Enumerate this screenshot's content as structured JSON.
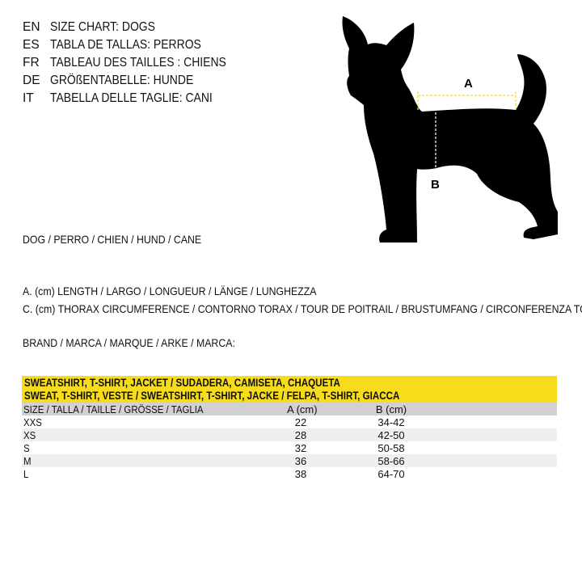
{
  "languages": [
    {
      "code": "EN",
      "text": "SIZE CHART: DOGS"
    },
    {
      "code": "ES",
      "text": "TABLA DE TALLAS: PERROS"
    },
    {
      "code": "FR",
      "text": "TABLEAU DES TAILLES : CHIENS"
    },
    {
      "code": "DE",
      "text": "GRÖßENTABELLE: HUNDE"
    },
    {
      "code": "IT",
      "text": "TABELLA DELLE TAGLIE: CANI"
    }
  ],
  "diagram": {
    "label_a": "A",
    "label_b": "B",
    "accent": "#f7dc1b"
  },
  "dog_label": "DOG / PERRO / CHIEN / HUND / CANE",
  "legend_a": "A. (cm) LENGTH / LARGO / LONGUEUR / LÄNGE / LUNGHEZZA",
  "legend_c": "C. (cm) THORAX CIRCUMFERENCE / CONTORNO TORAX / TOUR DE POITRAIL / BRUSTUMFANG / CIRCONFERENZA TORACE",
  "brand_label": "BRAND / MARCA / MARQUE / ARKE / MARCA:",
  "table": {
    "title_1": "SWEATSHIRT, T-SHIRT, JACKET / SUDADERA, CAMISETA, CHAQUETA",
    "title_2": "SWEAT, T-SHIRT, VESTE / SWEATSHIRT, T-SHIRT, JACKE / FELPA, T-SHIRT, GIACCA",
    "headers": [
      "SIZE / TALLA / TAILLE / GRÖSSE / TAGLIA",
      "A (cm)",
      "B (cm)"
    ],
    "rows": [
      [
        "XXS",
        "22",
        "34-42"
      ],
      [
        "XS",
        "28",
        "42-50"
      ],
      [
        "S",
        "32",
        "50-58"
      ],
      [
        "M",
        "36",
        "58-66"
      ],
      [
        "L",
        "38",
        "64-70"
      ]
    ]
  }
}
